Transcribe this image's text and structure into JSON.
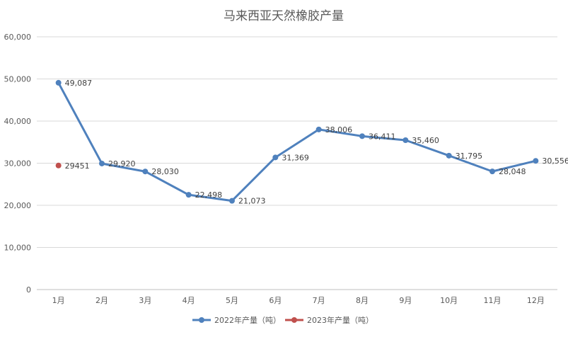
{
  "chart_data": {
    "type": "line",
    "title": "马来西亚天然橡胶产量",
    "xlabel": "",
    "ylabel": "",
    "categories": [
      "1月",
      "2月",
      "3月",
      "4月",
      "5月",
      "6月",
      "7月",
      "8月",
      "9月",
      "10月",
      "11月",
      "12月"
    ],
    "y_ticks": [
      "0",
      "10,000",
      "20,000",
      "30,000",
      "40,000",
      "50,000",
      "60,000"
    ],
    "ylim": [
      0,
      60000
    ],
    "grid": true,
    "legend_position": "bottom",
    "series": [
      {
        "name": "2022年产量（吨）",
        "color": "#4F81BD",
        "values": [
          49087,
          29920,
          28030,
          22498,
          21073,
          31369,
          38006,
          36411,
          35460,
          31795,
          28048,
          30556
        ],
        "labels": [
          "49,087",
          "29,920",
          "28,030",
          "22,498",
          "21,073",
          "31,369",
          "38,006",
          "36,411",
          "35,460",
          "31,795",
          "28,048",
          "30,556"
        ]
      },
      {
        "name": "2023年产量（吨）",
        "color": "#C0504D",
        "values": [
          29451,
          null,
          null,
          null,
          null,
          null,
          null,
          null,
          null,
          null,
          null,
          null
        ],
        "labels": [
          "29451",
          null,
          null,
          null,
          null,
          null,
          null,
          null,
          null,
          null,
          null,
          null
        ]
      }
    ]
  }
}
